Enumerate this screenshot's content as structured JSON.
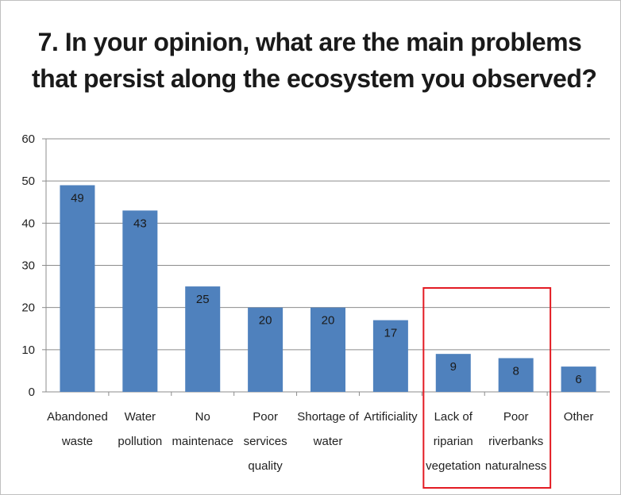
{
  "chart_data": {
    "type": "bar",
    "title_lines": [
      "7. In your opinion, what are the main problems",
      "that persist along the ecosystem you observed?"
    ],
    "categories": [
      [
        "Abandoned",
        "waste"
      ],
      [
        "Water",
        "pollution"
      ],
      [
        "No",
        "maintenace"
      ],
      [
        "Poor",
        "services",
        "quality"
      ],
      [
        "Shortage of",
        "water"
      ],
      [
        "Artificiality"
      ],
      [
        "Lack of",
        "riparian",
        "vegetation"
      ],
      [
        "Poor",
        "riverbanks",
        "naturalness"
      ],
      [
        "Other"
      ]
    ],
    "values": [
      49,
      43,
      25,
      20,
      20,
      17,
      9,
      8,
      6
    ],
    "ylim": [
      0,
      60
    ],
    "yticks": [
      0,
      10,
      20,
      30,
      40,
      50,
      60
    ],
    "grid": true,
    "xlabel": "",
    "ylabel": "",
    "bar_color": "#4f81bd",
    "highlight": {
      "categories": [
        6,
        7
      ],
      "color": "#e31b23"
    }
  }
}
